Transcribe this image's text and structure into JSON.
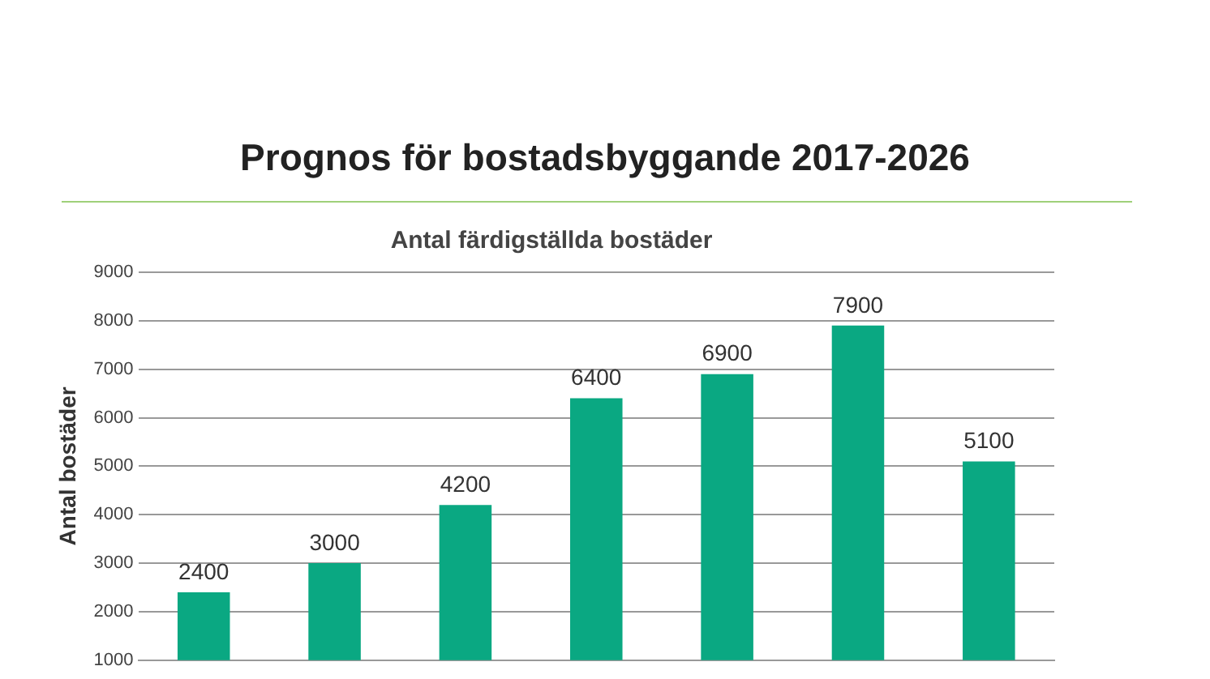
{
  "chart_data": {
    "type": "bar",
    "title": "Prognos för bostadsbyggande 2017-2026",
    "subtitle": "Antal färdigställda bostäder",
    "ylabel": "Antal bostäder",
    "categories": [
      null,
      null,
      null,
      null,
      null,
      null,
      null
    ],
    "values": [
      2400,
      3000,
      4200,
      6400,
      6900,
      7900,
      5100
    ],
    "color": "#0aa882",
    "ylim": [
      1000,
      9000
    ],
    "yticks": [
      1000,
      2000,
      3000,
      4000,
      5000,
      6000,
      7000,
      8000,
      9000
    ],
    "grid": "y",
    "data_labels": true,
    "legend": false
  }
}
